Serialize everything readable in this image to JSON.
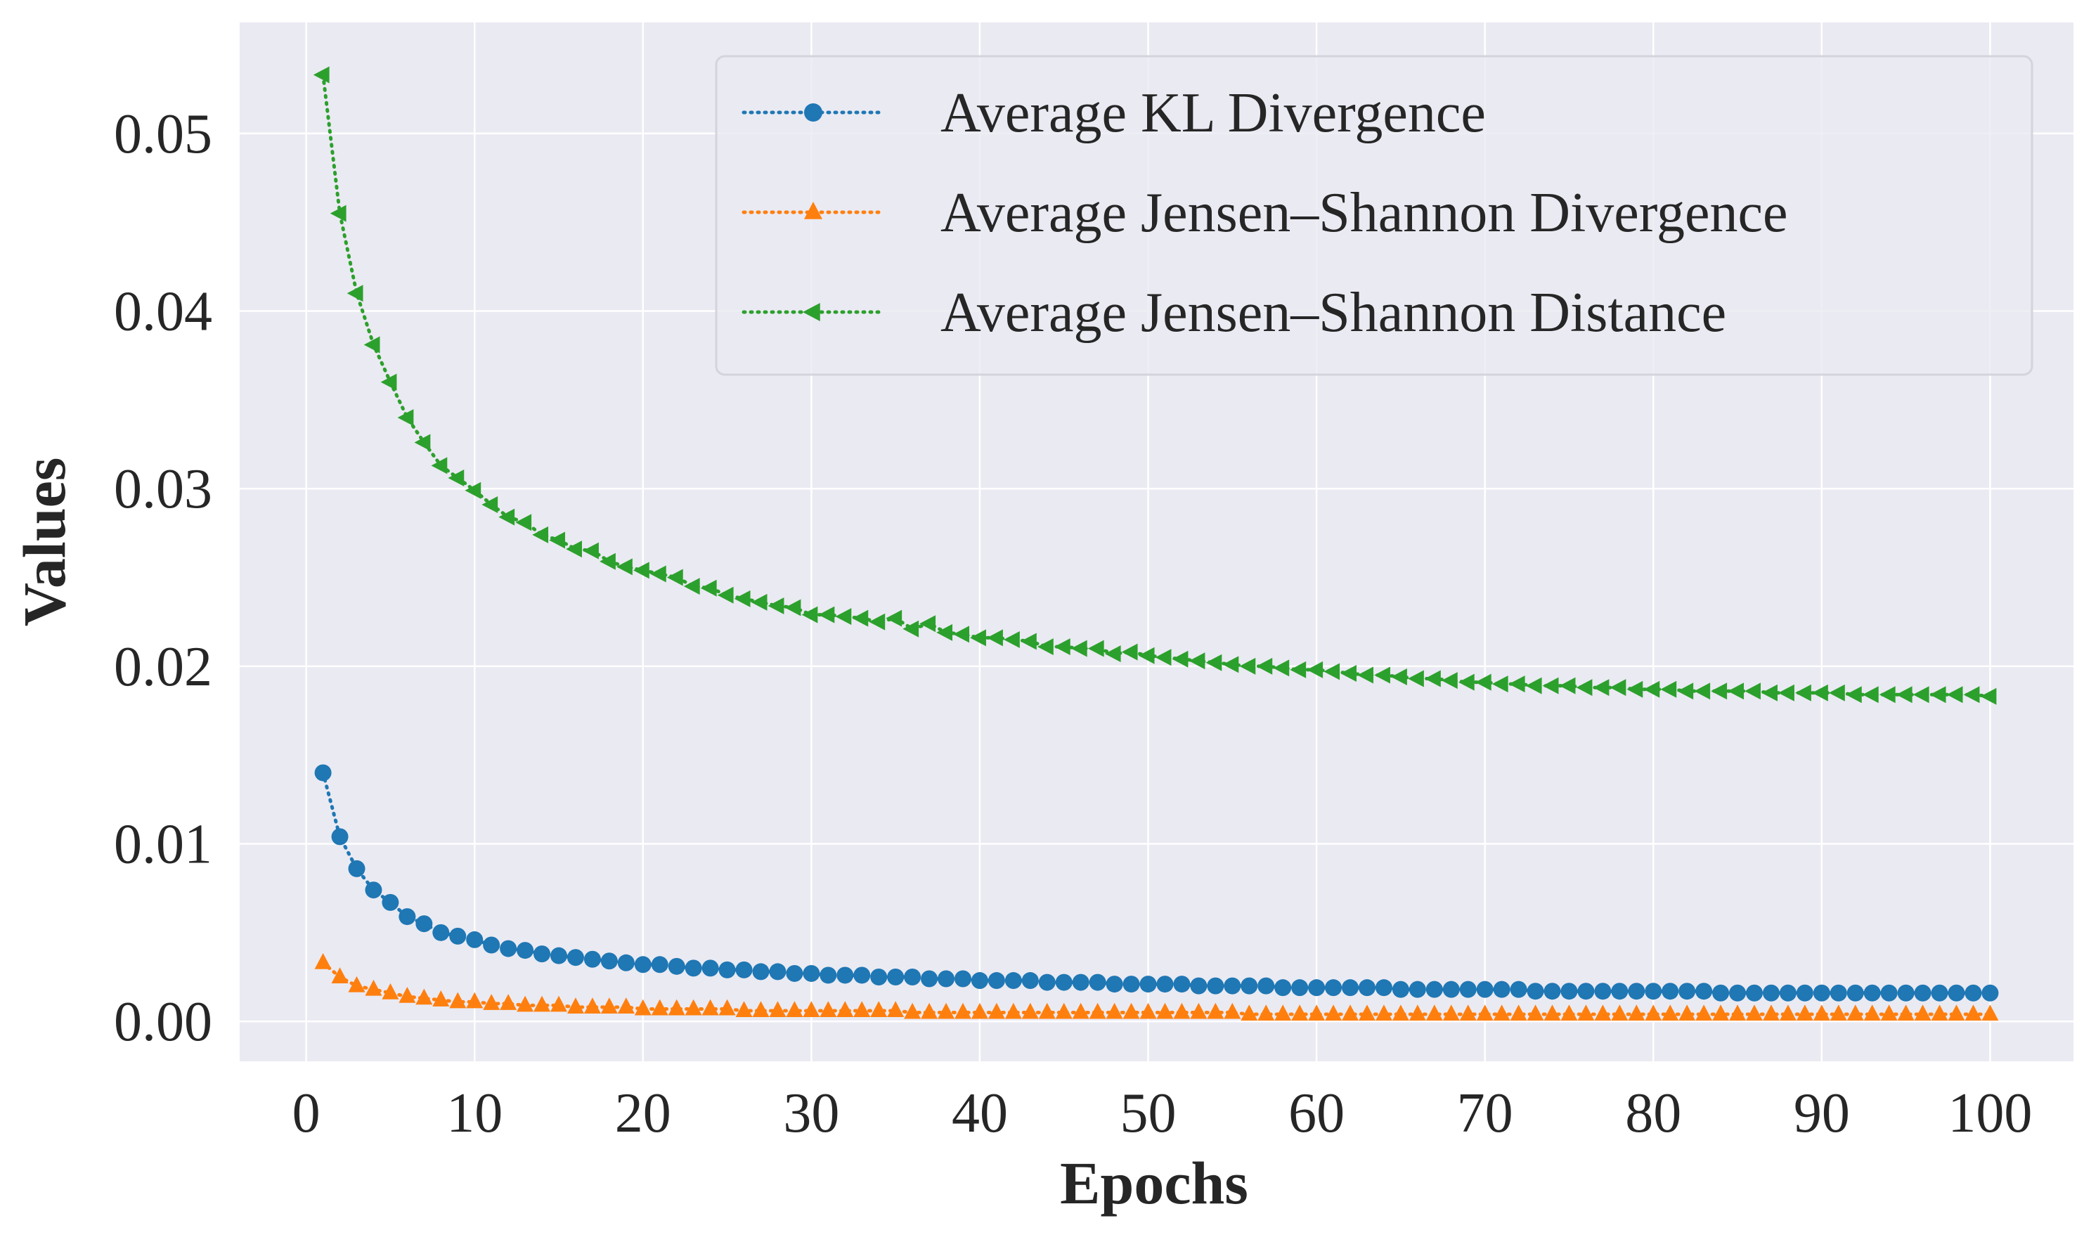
{
  "chart_data": {
    "type": "line",
    "title": "",
    "xlabel": "Epochs",
    "ylabel": "Values",
    "xlim": [
      -3.95,
      104.95
    ],
    "ylim": [
      -0.00225,
      0.05625
    ],
    "xticks": [
      "0",
      "10",
      "20",
      "30",
      "40",
      "50",
      "60",
      "70",
      "80",
      "90",
      "100"
    ],
    "yticks": [
      "0.00",
      "0.01",
      "0.02",
      "0.03",
      "0.04",
      "0.05"
    ],
    "grid": true,
    "legend_position": "top-right",
    "background": "#eaeaf2",
    "x": [
      1,
      2,
      3,
      4,
      5,
      6,
      7,
      8,
      9,
      10,
      11,
      12,
      13,
      14,
      15,
      16,
      17,
      18,
      19,
      20,
      21,
      22,
      23,
      24,
      25,
      26,
      27,
      28,
      29,
      30,
      31,
      32,
      33,
      34,
      35,
      36,
      37,
      38,
      39,
      40,
      41,
      42,
      43,
      44,
      45,
      46,
      47,
      48,
      49,
      50,
      51,
      52,
      53,
      54,
      55,
      56,
      57,
      58,
      59,
      60,
      61,
      62,
      63,
      64,
      65,
      66,
      67,
      68,
      69,
      70,
      71,
      72,
      73,
      74,
      75,
      76,
      77,
      78,
      79,
      80,
      81,
      82,
      83,
      84,
      85,
      86,
      87,
      88,
      89,
      90,
      91,
      92,
      93,
      94,
      95,
      96,
      97,
      98,
      99,
      100
    ],
    "series": [
      {
        "name": "Average KL Divergence",
        "color": "#1f77b4",
        "marker": "circle",
        "values": [
          0.014,
          0.0104,
          0.0086,
          0.0074,
          0.0067,
          0.0059,
          0.0055,
          0.005,
          0.0048,
          0.0046,
          0.0043,
          0.0041,
          0.004,
          0.0038,
          0.0037,
          0.0036,
          0.0035,
          0.0034,
          0.0033,
          0.0032,
          0.0032,
          0.0031,
          0.003,
          0.003,
          0.0029,
          0.0029,
          0.0028,
          0.0028,
          0.0027,
          0.0027,
          0.0026,
          0.0026,
          0.0026,
          0.0025,
          0.0025,
          0.0025,
          0.0024,
          0.0024,
          0.0024,
          0.0023,
          0.0023,
          0.0023,
          0.0023,
          0.0022,
          0.0022,
          0.0022,
          0.0022,
          0.0021,
          0.0021,
          0.0021,
          0.0021,
          0.0021,
          0.002,
          0.002,
          0.002,
          0.002,
          0.002,
          0.0019,
          0.0019,
          0.0019,
          0.0019,
          0.0019,
          0.0019,
          0.0019,
          0.0018,
          0.0018,
          0.0018,
          0.0018,
          0.0018,
          0.0018,
          0.0018,
          0.0018,
          0.0017,
          0.0017,
          0.0017,
          0.0017,
          0.0017,
          0.0017,
          0.0017,
          0.0017,
          0.0017,
          0.0017,
          0.0017,
          0.0016,
          0.0016,
          0.0016,
          0.0016,
          0.0016,
          0.0016,
          0.0016,
          0.0016,
          0.0016,
          0.0016,
          0.0016,
          0.0016,
          0.0016,
          0.0016,
          0.0016,
          0.0016,
          0.0016
        ]
      },
      {
        "name": "Average Jensen–Shannon Divergence",
        "color": "#ff7f0e",
        "marker": "triangle-up",
        "values": [
          0.0033,
          0.0025,
          0.002,
          0.0018,
          0.0016,
          0.0014,
          0.0013,
          0.0012,
          0.0011,
          0.0011,
          0.001,
          0.001,
          0.0009,
          0.0009,
          0.0009,
          0.0008,
          0.0008,
          0.0008,
          0.0008,
          0.0007,
          0.0007,
          0.0007,
          0.0007,
          0.0007,
          0.0007,
          0.0006,
          0.0006,
          0.0006,
          0.0006,
          0.0006,
          0.0006,
          0.0006,
          0.0006,
          0.0006,
          0.0006,
          0.0005,
          0.0005,
          0.0005,
          0.0005,
          0.0005,
          0.0005,
          0.0005,
          0.0005,
          0.0005,
          0.0005,
          0.0005,
          0.0005,
          0.0005,
          0.0005,
          0.0005,
          0.0005,
          0.0005,
          0.0005,
          0.0005,
          0.0005,
          0.0004,
          0.0004,
          0.0004,
          0.0004,
          0.0004,
          0.0004,
          0.0004,
          0.0004,
          0.0004,
          0.0004,
          0.0004,
          0.0004,
          0.0004,
          0.0004,
          0.0004,
          0.0004,
          0.0004,
          0.0004,
          0.0004,
          0.0004,
          0.0004,
          0.0004,
          0.0004,
          0.0004,
          0.0004,
          0.0004,
          0.0004,
          0.0004,
          0.0004,
          0.0004,
          0.0004,
          0.0004,
          0.0004,
          0.0004,
          0.0004,
          0.0004,
          0.0004,
          0.0004,
          0.0004,
          0.0004,
          0.0004,
          0.0004,
          0.0004,
          0.0004,
          0.0004
        ]
      },
      {
        "name": "Average Jensen–Shannon Distance",
        "color": "#2ca02c",
        "marker": "triangle-left",
        "values": [
          0.0533,
          0.0455,
          0.041,
          0.0381,
          0.036,
          0.034,
          0.0326,
          0.0313,
          0.0306,
          0.0299,
          0.0291,
          0.0284,
          0.0281,
          0.0274,
          0.0271,
          0.0266,
          0.0265,
          0.0259,
          0.0256,
          0.0254,
          0.0252,
          0.025,
          0.0245,
          0.0244,
          0.024,
          0.0238,
          0.0236,
          0.0234,
          0.0233,
          0.0229,
          0.0229,
          0.0228,
          0.0227,
          0.0225,
          0.0227,
          0.0221,
          0.0224,
          0.0219,
          0.0218,
          0.0216,
          0.0216,
          0.0215,
          0.0214,
          0.0211,
          0.0211,
          0.021,
          0.021,
          0.0207,
          0.0208,
          0.0206,
          0.0205,
          0.0204,
          0.0203,
          0.0202,
          0.0201,
          0.02,
          0.02,
          0.0199,
          0.0198,
          0.0198,
          0.0197,
          0.0196,
          0.0195,
          0.0195,
          0.0194,
          0.0193,
          0.0193,
          0.0192,
          0.0191,
          0.0191,
          0.019,
          0.019,
          0.0189,
          0.0189,
          0.0189,
          0.0188,
          0.0188,
          0.0188,
          0.0187,
          0.0187,
          0.0187,
          0.0186,
          0.0186,
          0.0186,
          0.0186,
          0.0186,
          0.0185,
          0.0185,
          0.0185,
          0.0185,
          0.0185,
          0.0184,
          0.0184,
          0.0184,
          0.0184,
          0.0184,
          0.0184,
          0.0184,
          0.0184,
          0.0183
        ]
      }
    ]
  }
}
